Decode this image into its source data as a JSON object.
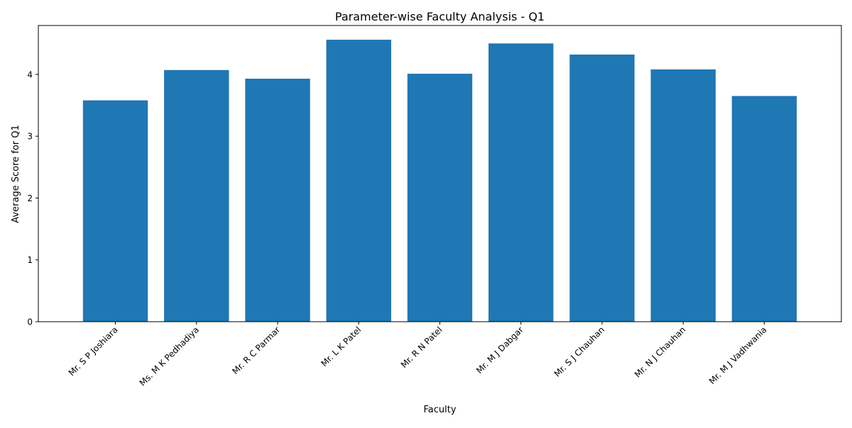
{
  "chart_data": {
    "type": "bar",
    "title": "Parameter-wise Faculty Analysis - Q1",
    "xlabel": "Faculty",
    "ylabel": "Average Score for Q1",
    "categories": [
      "Mr. S P Joshiara",
      "Ms. M K Pedhadiya",
      "Mr. R C Parmar",
      "Mr. L K Patel",
      "Mr. R N Patel",
      "Mr. M J Dabgar",
      "Mr. S J Chauhan",
      "Mr. N J Chauhan",
      "Mr. M J Vadhwania"
    ],
    "values": [
      3.58,
      4.07,
      3.93,
      4.56,
      4.01,
      4.5,
      4.32,
      4.08,
      3.65
    ],
    "ylim": [
      0,
      4.79
    ],
    "yticks": [
      0,
      1,
      2,
      3,
      4
    ],
    "grid": false,
    "bar_color": "#1f77b4"
  }
}
